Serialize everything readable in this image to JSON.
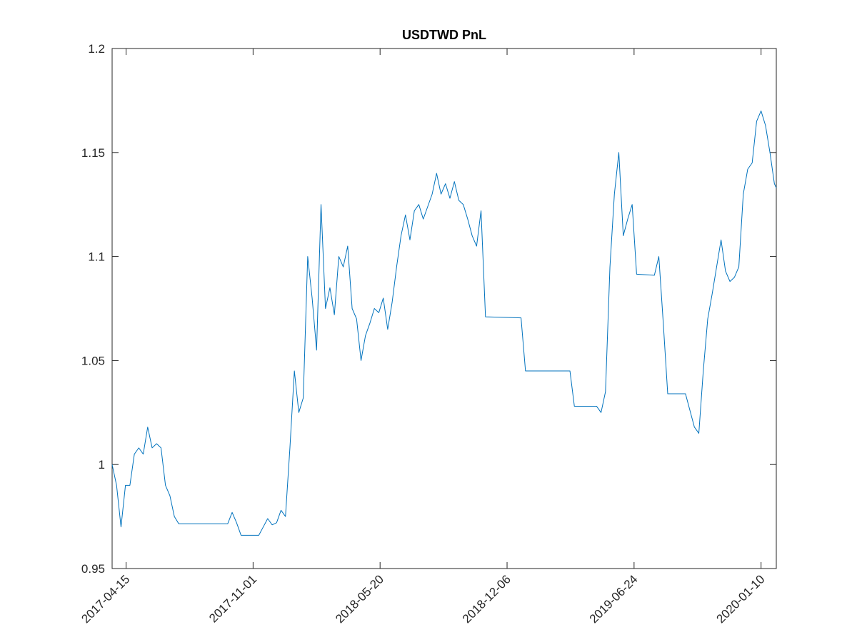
{
  "chart_data": {
    "type": "line",
    "title": "USDTWD PnL",
    "color": "#0072bd",
    "x": [
      "2017-03-24",
      "2017-03-31",
      "2017-04-07",
      "2017-04-14",
      "2017-04-21",
      "2017-04-28",
      "2017-05-05",
      "2017-05-12",
      "2017-05-19",
      "2017-05-26",
      "2017-06-02",
      "2017-06-09",
      "2017-06-16",
      "2017-06-23",
      "2017-06-30",
      "2017-07-07",
      "2017-09-22",
      "2017-09-29",
      "2017-10-06",
      "2017-10-13",
      "2017-11-10",
      "2017-11-17",
      "2017-11-24",
      "2017-12-01",
      "2017-12-08",
      "2017-12-15",
      "2017-12-22",
      "2017-12-29",
      "2018-01-05",
      "2018-01-12",
      "2018-01-19",
      "2018-01-26",
      "2018-02-02",
      "2018-02-09",
      "2018-02-16",
      "2018-02-23",
      "2018-03-02",
      "2018-03-09",
      "2018-03-16",
      "2018-03-23",
      "2018-03-30",
      "2018-04-06",
      "2018-04-13",
      "2018-04-20",
      "2018-04-27",
      "2018-05-04",
      "2018-05-11",
      "2018-05-18",
      "2018-05-25",
      "2018-06-01",
      "2018-06-08",
      "2018-06-15",
      "2018-06-22",
      "2018-06-29",
      "2018-07-06",
      "2018-07-13",
      "2018-07-20",
      "2018-07-27",
      "2018-08-03",
      "2018-08-10",
      "2018-08-17",
      "2018-08-24",
      "2018-08-31",
      "2018-09-07",
      "2018-09-14",
      "2018-09-21",
      "2018-09-28",
      "2018-10-05",
      "2018-10-12",
      "2018-10-19",
      "2018-10-26",
      "2018-11-02",
      "2018-12-28",
      "2019-01-04",
      "2019-03-08",
      "2019-03-15",
      "2019-03-22",
      "2019-04-26",
      "2019-05-03",
      "2019-05-10",
      "2019-05-17",
      "2019-05-24",
      "2019-05-31",
      "2019-06-07",
      "2019-06-14",
      "2019-06-21",
      "2019-06-28",
      "2019-07-26",
      "2019-08-02",
      "2019-08-09",
      "2019-08-16",
      "2019-09-13",
      "2019-09-20",
      "2019-09-27",
      "2019-10-04",
      "2019-10-11",
      "2019-10-18",
      "2019-10-25",
      "2019-11-01",
      "2019-11-08",
      "2019-11-15",
      "2019-11-22",
      "2019-11-29",
      "2019-12-06",
      "2019-12-13",
      "2019-12-20",
      "2019-12-27",
      "2020-01-03",
      "2020-01-10",
      "2020-01-17",
      "2020-01-24",
      "2020-01-31",
      "2020-02-03"
    ],
    "values": [
      1.0,
      0.99,
      0.97,
      0.99,
      0.99,
      1.005,
      1.008,
      1.005,
      1.018,
      1.008,
      1.01,
      1.008,
      0.99,
      0.985,
      0.975,
      0.9715,
      0.9715,
      0.977,
      0.972,
      0.966,
      0.966,
      0.97,
      0.974,
      0.971,
      0.972,
      0.978,
      0.975,
      1.008,
      1.045,
      1.025,
      1.032,
      1.1,
      1.08,
      1.055,
      1.125,
      1.075,
      1.085,
      1.072,
      1.1,
      1.095,
      1.105,
      1.075,
      1.07,
      1.05,
      1.062,
      1.068,
      1.075,
      1.073,
      1.08,
      1.065,
      1.078,
      1.095,
      1.11,
      1.12,
      1.108,
      1.122,
      1.125,
      1.118,
      1.124,
      1.13,
      1.14,
      1.13,
      1.135,
      1.128,
      1.136,
      1.127,
      1.125,
      1.118,
      1.11,
      1.105,
      1.122,
      1.071,
      1.0705,
      1.045,
      1.045,
      1.045,
      1.028,
      1.028,
      1.025,
      1.035,
      1.095,
      1.13,
      1.15,
      1.11,
      1.118,
      1.125,
      1.0915,
      1.091,
      1.1,
      1.068,
      1.034,
      1.034,
      1.026,
      1.018,
      1.015,
      1.045,
      1.07,
      1.082,
      1.095,
      1.108,
      1.093,
      1.088,
      1.09,
      1.095,
      1.13,
      1.142,
      1.145,
      1.165,
      1.17,
      1.163,
      1.15,
      1.135,
      1.133
    ],
    "xlim": [
      "2017-03-24",
      "2020-02-03"
    ],
    "xticks": [
      "2017-04-15",
      "2017-11-01",
      "2018-05-20",
      "2018-12-06",
      "2019-06-24",
      "2020-01-10"
    ],
    "ylim": [
      0.95,
      1.2
    ],
    "yticks": [
      0.95,
      1,
      1.05,
      1.1,
      1.15,
      1.2
    ]
  }
}
